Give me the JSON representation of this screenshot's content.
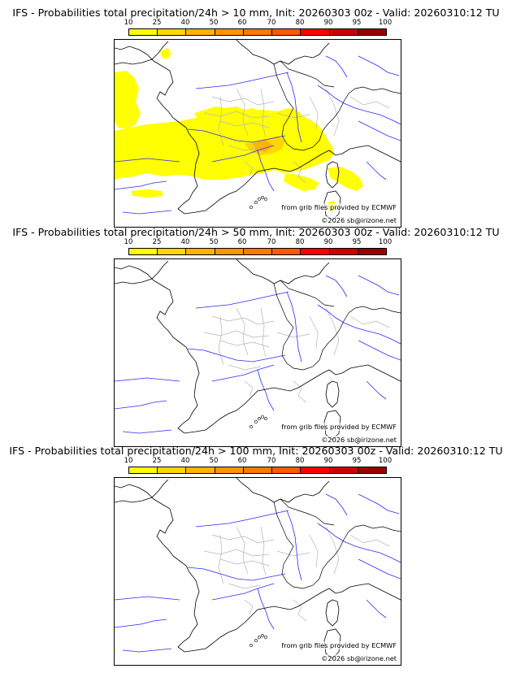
{
  "legend": {
    "ticks": [
      "10",
      "25",
      "40",
      "50",
      "60",
      "70",
      "80",
      "90",
      "95",
      "100"
    ],
    "colors": [
      "#ffff00",
      "#ffd700",
      "#ffb400",
      "#ff9600",
      "#ff7800",
      "#ff5a00",
      "#ff0000",
      "#cc0000",
      "#990000",
      "#660000"
    ]
  },
  "panels": [
    {
      "title": "IFS - Probabilities total precipitation/24h > 10 mm, Init: 20260303 00z - Valid: 20260310:12 TU",
      "credit_source": "from grib files provided by ECMWF",
      "credit_copyright": "©2026 sb@irizone.net",
      "has_precip": true
    },
    {
      "title": "IFS - Probabilities total precipitation/24h > 50 mm, Init: 20260303 00z - Valid: 20260310:12 TU",
      "credit_source": "from grib files provided by ECMWF",
      "credit_copyright": "©2026 sb@irizone.net",
      "has_precip": false
    },
    {
      "title": "IFS - Probabilities total precipitation/24h > 100 mm, Init: 20260303 00z - Valid: 20260310:12 TU",
      "credit_source": "from grib files provided by ECMWF",
      "credit_copyright": "©2026 sb@irizone.net",
      "has_precip": false
    }
  ]
}
